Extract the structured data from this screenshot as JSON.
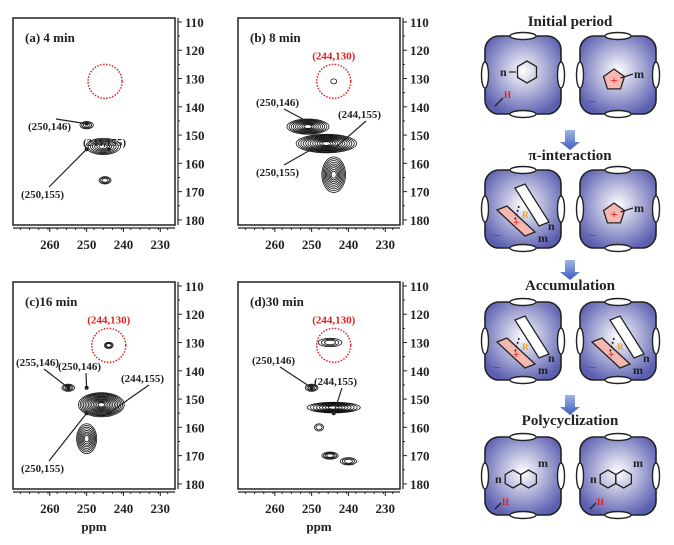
{
  "chart_data": [
    {
      "type": "contour",
      "title": "(a) 4 min",
      "xlabel": "",
      "xlim": [
        270,
        226
      ],
      "ylim": [
        108.6,
        181.8
      ],
      "xticks": [
        260,
        250,
        240,
        230
      ],
      "yticks": [
        110,
        120,
        130,
        140,
        150,
        160,
        170,
        180
      ],
      "highlight_circle": {
        "center": [
          245,
          131
        ],
        "label": ""
      },
      "annotations": [
        "(250,146)",
        "(244,155)",
        "(250,155)"
      ],
      "peaks": [
        {
          "x": 250,
          "y": 146.5,
          "sx": 1.6,
          "sy": 1.0,
          "levels": 3
        },
        {
          "x": 245.5,
          "y": 154,
          "sx": 4.5,
          "sy": 2.6,
          "levels": 7
        },
        {
          "x": 245,
          "y": 166,
          "sx": 1.4,
          "sy": 1.0,
          "levels": 3
        }
      ]
    },
    {
      "type": "contour",
      "title": "(b) 8 min",
      "xlabel": "",
      "xlim": [
        270,
        226
      ],
      "ylim": [
        108.6,
        181.8
      ],
      "xticks": [
        260,
        250,
        240,
        230
      ],
      "yticks": [
        110,
        120,
        130,
        140,
        150,
        160,
        170,
        180
      ],
      "highlight_circle": {
        "center": [
          244,
          131
        ],
        "label": "(244,130)"
      },
      "annotations": [
        "(250,146)",
        "(244,155)",
        "(250,155)"
      ],
      "peaks": [
        {
          "x": 244,
          "y": 131,
          "sx": 0.6,
          "sy": 0.6,
          "levels": 1
        },
        {
          "x": 251,
          "y": 147,
          "sx": 5.5,
          "sy": 2.4,
          "levels": 9
        },
        {
          "x": 246,
          "y": 153,
          "sx": 8,
          "sy": 3.0,
          "levels": 12
        },
        {
          "x": 244,
          "y": 164,
          "sx": 3,
          "sy": 6,
          "levels": 9
        }
      ]
    },
    {
      "type": "contour",
      "title": "(c)16 min",
      "xlabel": "ppm",
      "xlim": [
        270,
        226
      ],
      "ylim": [
        108.6,
        181.8
      ],
      "xticks": [
        260,
        250,
        240,
        230
      ],
      "yticks": [
        110,
        120,
        130,
        140,
        150,
        160,
        170,
        180
      ],
      "highlight_circle": {
        "center": [
          244,
          131
        ],
        "label": "(244,130)"
      },
      "annotations": [
        "(255,146)",
        "(250,146)",
        "(244,155)",
        "(250,155)"
      ],
      "peaks": [
        {
          "x": 244,
          "y": 131,
          "sx": 1.0,
          "sy": 0.8,
          "levels": 3
        },
        {
          "x": 255,
          "y": 146,
          "sx": 1.5,
          "sy": 1.0,
          "levels": 3
        },
        {
          "x": 246,
          "y": 152,
          "sx": 6,
          "sy": 4,
          "levels": 13
        },
        {
          "x": 250,
          "y": 164,
          "sx": 2.5,
          "sy": 5,
          "levels": 8
        }
      ]
    },
    {
      "type": "contour",
      "title": "(d)30 min",
      "xlabel": "ppm",
      "xlim": [
        270,
        226
      ],
      "ylim": [
        108.6,
        181.8
      ],
      "xticks": [
        260,
        250,
        240,
        230
      ],
      "yticks": [
        110,
        120,
        130,
        140,
        150,
        160,
        170,
        180
      ],
      "highlight_circle": {
        "center": [
          244,
          131
        ],
        "label": "(244,130)"
      },
      "annotations": [
        "(250,146)",
        "(244,155)"
      ],
      "peaks": [
        {
          "x": 245,
          "y": 130,
          "sx": 3,
          "sy": 1.2,
          "levels": 3
        },
        {
          "x": 250,
          "y": 146,
          "sx": 1.5,
          "sy": 1.0,
          "levels": 3
        },
        {
          "x": 244,
          "y": 153,
          "sx": 7,
          "sy": 1.6,
          "levels": 8
        },
        {
          "x": 248,
          "y": 160,
          "sx": 1,
          "sy": 1,
          "levels": 2
        },
        {
          "x": 245,
          "y": 170,
          "sx": 2,
          "sy": 1,
          "levels": 4
        },
        {
          "x": 240,
          "y": 172,
          "sx": 2,
          "sy": 1,
          "levels": 3
        }
      ]
    }
  ],
  "scheme": {
    "stages": [
      {
        "title": "Initial period"
      },
      {
        "title": "π-interaction"
      },
      {
        "title": "Accumulation"
      },
      {
        "title": "Polycyclization"
      }
    ],
    "labels": {
      "n": "n",
      "m": "m",
      "h": "H",
      "r": "R",
      "plus": "+",
      "minus": "−"
    },
    "colors": {
      "cage": "#5b5fb0",
      "cage_center": "#ffffff",
      "carbocation": "#f4b8b0",
      "charge": "#e02020",
      "circle": "#e02020",
      "arrow": "#4a6cc0"
    }
  }
}
